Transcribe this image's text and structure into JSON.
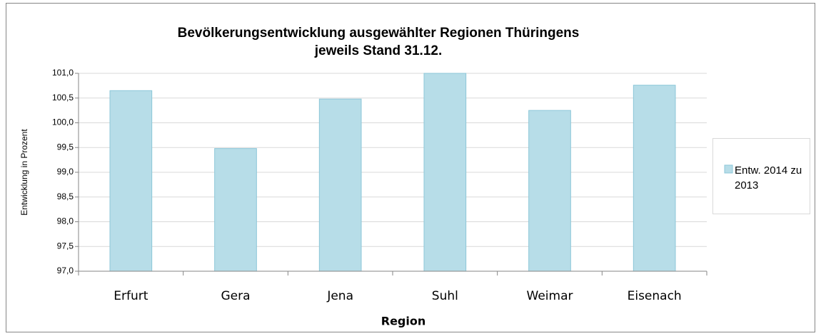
{
  "chart_data": {
    "type": "bar",
    "title": "Bevölkerungsentwicklung ausgewählter Regionen Thüringens",
    "subtitle": "jeweils Stand 31.12.",
    "x_label": "Region",
    "y_label": "Entwicklung in Prozent",
    "categories": [
      "Erfurt",
      "Gera",
      "Jena",
      "Suhl",
      "Weimar",
      "Eisenach"
    ],
    "series": [
      {
        "name": "Entw. 2014 zu 2013",
        "color": "#b7dde8",
        "values": [
          100.65,
          99.48,
          100.48,
          101.0,
          100.25,
          100.76
        ]
      }
    ],
    "ylim": [
      97.0,
      101.0
    ],
    "yticks": [
      {
        "value": 97.0,
        "label": "97,0"
      },
      {
        "value": 97.5,
        "label": "97,5"
      },
      {
        "value": 98.0,
        "label": "98,0"
      },
      {
        "value": 98.5,
        "label": "98,5"
      },
      {
        "value": 99.0,
        "label": "99,0"
      },
      {
        "value": 99.5,
        "label": "99,5"
      },
      {
        "value": 100.0,
        "label": "100,0"
      },
      {
        "value": 100.5,
        "label": "100,5"
      },
      {
        "value": 101.0,
        "label": "101,0"
      }
    ],
    "grid": true,
    "legend": "right"
  }
}
